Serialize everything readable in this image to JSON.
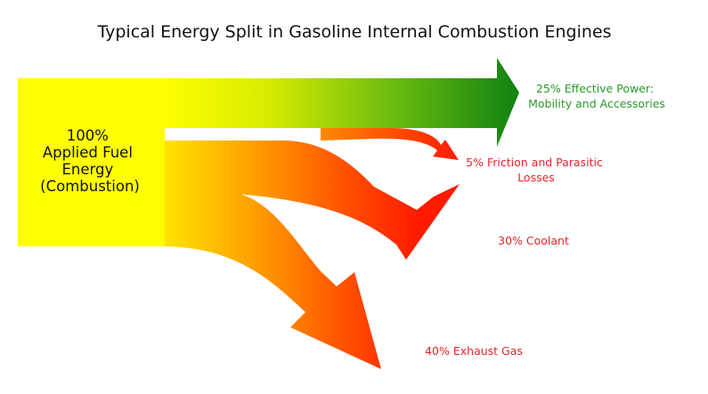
{
  "title": "Typical Energy Split in Gasoline Internal Combustion Engines",
  "source": {
    "lines": [
      "100%",
      "Applied Fuel",
      "Energy",
      "(Combustion)"
    ],
    "percent": 100
  },
  "flows": [
    {
      "id": "effective-power",
      "percent": 25,
      "lines": [
        "25% Effective Power:",
        "Mobility and Accessories"
      ],
      "color": "#2a9a2a"
    },
    {
      "id": "friction",
      "percent": 5,
      "lines": [
        "5% Friction and Parasitic",
        "Losses"
      ],
      "color": "#e8242a"
    },
    {
      "id": "coolant",
      "percent": 30,
      "lines": [
        "30% Coolant"
      ],
      "color": "#e8242a"
    },
    {
      "id": "exhaust",
      "percent": 40,
      "lines": [
        "40%  Exhaust Gas"
      ],
      "color": "#e8242a"
    }
  ],
  "colors": {
    "source": "#ffff00",
    "mid": "#ffaa00",
    "hot": "#ff1a00",
    "power": "#128212"
  }
}
